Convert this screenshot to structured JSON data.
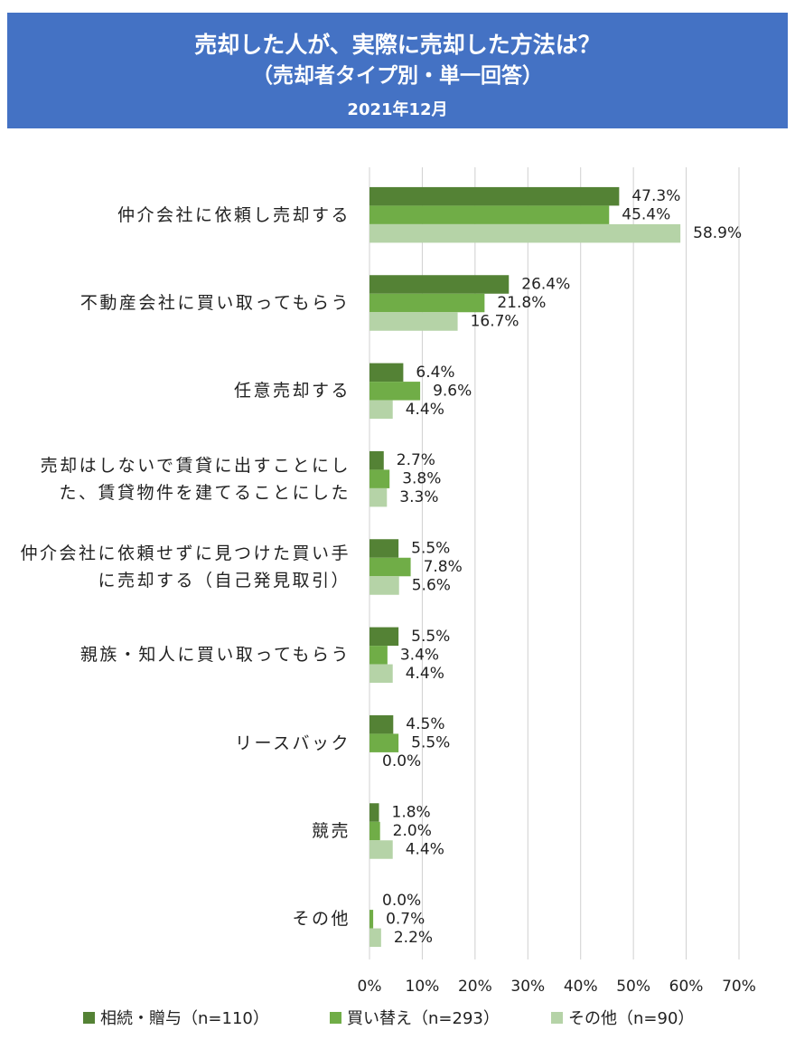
{
  "chart_data": {
    "type": "bar",
    "orientation": "horizontal",
    "title": "売却した人が、実際に売却した方法は？",
    "subtitle": "（売却者タイプ別・単一回答）",
    "date": "2021年12月",
    "categories": [
      "仲介会社に依頼し売却する",
      "不動産会社に買い取ってもらう",
      "任意売却する",
      "売却はしないで賃貸に出すことにした、賃貸物件を建てることにした",
      "仲介会社に依頼せずに見つけた買い手に売却する（自己発見取引）",
      "親族・知人に買い取ってもらう",
      "リースバック",
      "競売",
      "その他"
    ],
    "series": [
      {
        "name": "相続・贈与（n=110）",
        "color": "#548235",
        "values": [
          47.3,
          26.4,
          6.4,
          2.7,
          5.5,
          5.5,
          4.5,
          1.8,
          0.0
        ],
        "value_labels": [
          "47.3%",
          "26.4%",
          "6.4%",
          "2.7%",
          "5.5%",
          "5.5%",
          "4.5%",
          "1.8%",
          "0.0%"
        ]
      },
      {
        "name": "買い替え（n=293）",
        "color": "#70ad47",
        "values": [
          45.4,
          21.8,
          9.6,
          3.8,
          7.8,
          3.4,
          5.5,
          2.0,
          0.7
        ],
        "value_labels": [
          "45.4%",
          "21.8%",
          "9.6%",
          "3.8%",
          "7.8%",
          "3.4%",
          "5.5%",
          "2.0%",
          "0.7%"
        ]
      },
      {
        "name": "その他（n=90）",
        "color": "#b5d3a7",
        "values": [
          58.9,
          16.7,
          4.4,
          3.3,
          5.6,
          4.4,
          0.0,
          4.4,
          2.2
        ],
        "value_labels": [
          "58.9%",
          "16.7%",
          "4.4%",
          "3.3%",
          "5.6%",
          "4.4%",
          "0.0%",
          "4.4%",
          "2.2%"
        ]
      }
    ],
    "xlim": [
      0,
      70
    ],
    "xticks": [
      {
        "value": 0,
        "label": "0%"
      },
      {
        "value": 10,
        "label": "10%"
      },
      {
        "value": 20,
        "label": "20%"
      },
      {
        "value": 30,
        "label": "30%"
      },
      {
        "value": 40,
        "label": "40%"
      },
      {
        "value": 50,
        "label": "50%"
      },
      {
        "value": 60,
        "label": "60%"
      },
      {
        "value": 70,
        "label": "70%"
      }
    ],
    "grid": true,
    "legend": "bottom"
  }
}
